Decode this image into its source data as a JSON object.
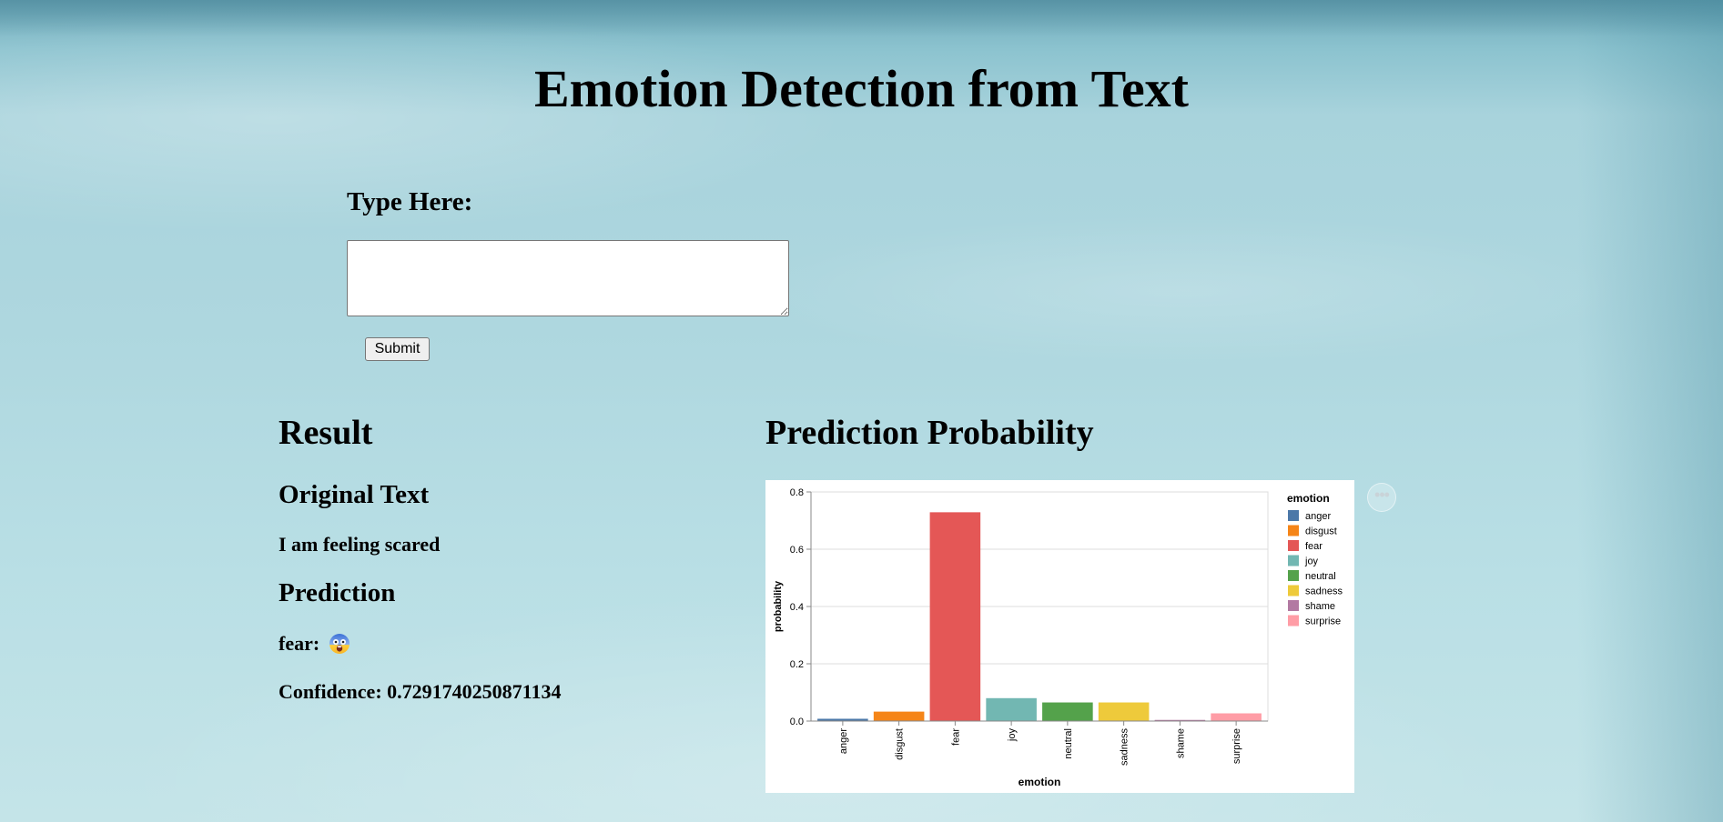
{
  "page": {
    "title": "Emotion Detection from Text"
  },
  "form": {
    "label": "Type Here:",
    "input_value": "",
    "submit_label": "Submit"
  },
  "result": {
    "heading": "Result",
    "original_heading": "Original Text",
    "original_text": "I am feeling scared",
    "prediction_heading": "Prediction",
    "prediction_label": "fear:",
    "prediction_icon": "fearful-face-emoji-icon",
    "confidence_text": "Confidence: 0.7291740250871134"
  },
  "probability": {
    "heading": "Prediction Probability",
    "menu_label": "•••"
  },
  "chart_data": {
    "type": "bar",
    "categories": [
      "anger",
      "disgust",
      "fear",
      "joy",
      "neutral",
      "sadness",
      "shame",
      "surprise"
    ],
    "values": [
      0.008,
      0.033,
      0.729,
      0.08,
      0.065,
      0.065,
      0.004,
      0.027
    ],
    "colors": [
      "#4c78a8",
      "#f58518",
      "#e45756",
      "#72b7b2",
      "#54a24b",
      "#eeca3b",
      "#b279a2",
      "#ff9da6"
    ],
    "xlabel": "emotion",
    "ylabel": "probability",
    "ylim": [
      0,
      0.8
    ],
    "yticks": [
      "0.0",
      "0.2",
      "0.4",
      "0.6",
      "0.8"
    ],
    "legend_title": "emotion",
    "legend_position": "right",
    "grid": true
  }
}
